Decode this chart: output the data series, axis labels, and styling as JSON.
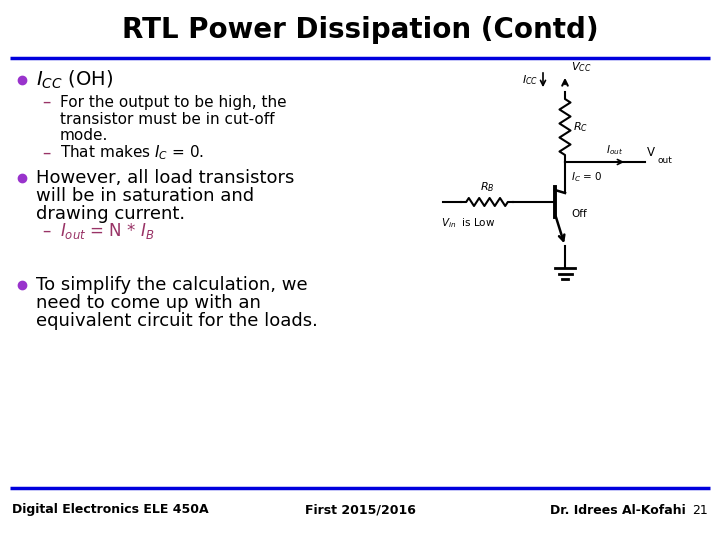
{
  "title": "RTL Power Dissipation (Contd)",
  "title_fontsize": 20,
  "background_color": "#ffffff",
  "accent_color": "#0000dd",
  "bullet_color": "#9933cc",
  "sub_dash_color": "#993366",
  "text_color": "#000000",
  "footer_left": "Digital Electronics ELE 450A",
  "footer_center": "First 2015/2016",
  "footer_right": "Dr. Idrees Al-Kofahi",
  "footer_page": "21",
  "footer_fontsize": 9,
  "line1_bullet1": "$I_{CC}$ (OH)",
  "line2_sub1": "For the output to be high, the",
  "line3_sub1": "transistor must be in cut-off",
  "line4_sub1": "mode.",
  "line5_sub2": "That makes $I_C$ = 0.",
  "line6_bullet2a": "However, all load transistors",
  "line6_bullet2b": "will be in saturation and",
  "line6_bullet2c": "drawing current.",
  "line7_sub3": "$I_{out}$ = N * $I_B$",
  "line8_bullet3a": "To simplify the calculation, we",
  "line8_bullet3b": "need to come up with an",
  "line8_bullet3c": "equivalent circuit for the loads."
}
